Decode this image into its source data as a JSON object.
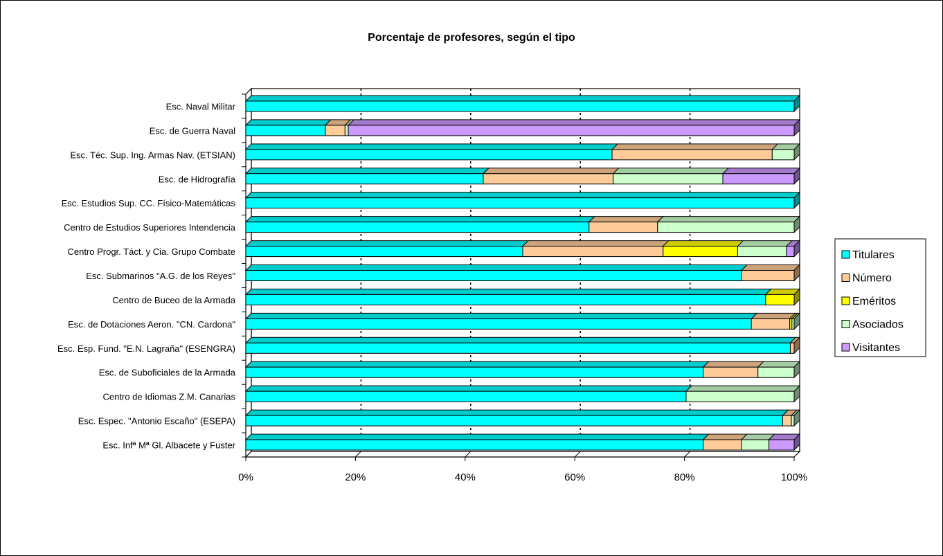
{
  "chart_data": {
    "type": "bar",
    "stacked": "percent",
    "orientation": "horizontal",
    "title": "Porcentaje de profesores, según el tipo",
    "xlabel": "",
    "ylabel": "",
    "xlim": [
      0,
      100
    ],
    "x_ticks": [
      "0%",
      "20%",
      "40%",
      "60%",
      "80%",
      "100%"
    ],
    "grid": "vertical dashed",
    "legend_position": "right",
    "categories": [
      "Esc. Naval Militar",
      "Esc. de Guerra Naval",
      "Esc. Téc. Sup. Ing. Armas Nav. (ETSIAN)",
      "Esc. de Hidrografía",
      "Esc. Estudios Sup. CC. Físico-Matemáticas",
      "Centro de Estudios Superiores Intendencia",
      "Centro Progr. Táct. y Cia. Grupo Combate",
      "Esc. Submarinos \"A.G. de los Reyes\"",
      "Centro de Buceo de la Armada",
      "Esc. de Dotaciones Aeron. \"CN. Cardona\"",
      "Esc. Esp. Fund. \"E.N. Lagraña\" (ESENGRA)",
      "Esc. de Suboficiales de la Armada",
      "Centro de Idiomas Z.M. Canarias",
      "Esc. Espec. \"Antonio Escaño\" (ESEPA)",
      "Esc. Infª Mª Gl. Albacete y Fuster"
    ],
    "series": [
      {
        "name": "Titulares",
        "color": "#00ffff",
        "values": [
          100,
          14.5,
          66.8,
          43.3,
          100,
          62.6,
          50.5,
          90.4,
          94.8,
          92.2,
          99.3,
          83.4,
          80.3,
          97.9,
          83.4
        ]
      },
      {
        "name": "Número",
        "color": "#ffcc99",
        "values": [
          0,
          3.6,
          29.2,
          23.7,
          0,
          12.5,
          25.6,
          9.6,
          0,
          7.0,
          0.7,
          10.0,
          0,
          1.6,
          7.0
        ]
      },
      {
        "name": "Eméritos",
        "color": "#ffff00",
        "values": [
          0,
          0,
          0,
          0,
          0,
          0,
          13.6,
          0,
          5.2,
          0.4,
          0,
          0,
          0,
          0,
          0
        ]
      },
      {
        "name": "Asociados",
        "color": "#ccffcc",
        "values": [
          0,
          0.6,
          4.0,
          20.0,
          0,
          24.9,
          8.9,
          0,
          0,
          0.4,
          0,
          6.6,
          19.7,
          0.5,
          5.0
        ]
      },
      {
        "name": "Visitantes",
        "color": "#cc99ff",
        "values": [
          0,
          81.3,
          0,
          13.0,
          0,
          0,
          1.4,
          0,
          0,
          0,
          0,
          0,
          0,
          0,
          4.6
        ]
      }
    ]
  }
}
